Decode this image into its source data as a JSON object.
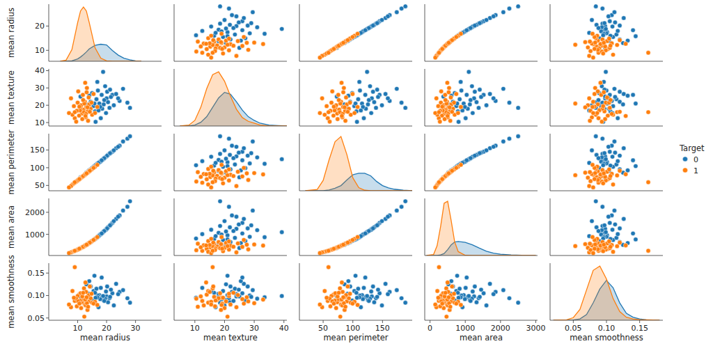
{
  "chart_data": {
    "type": "pairplot",
    "legend_title": "Target",
    "legend": "right",
    "variables": [
      {
        "name": "mean radius",
        "xlim": [
          0,
          39
        ],
        "xticks": [
          10,
          20,
          30
        ],
        "ylim": [
          5.5,
          29
        ],
        "yticks": [
          10,
          20
        ],
        "kde_x": [
          4,
          6,
          8,
          10,
          11,
          12,
          13,
          14,
          16,
          18,
          20,
          22,
          24,
          26,
          28,
          30,
          32
        ]
      },
      {
        "name": "mean texture",
        "xlim": [
          3,
          41
        ],
        "xticks": [
          10,
          20,
          30,
          40
        ],
        "ylim": [
          8,
          41
        ],
        "yticks": [
          10,
          20,
          30,
          40
        ],
        "kde_x": [
          5,
          8,
          10,
          12,
          14,
          16,
          18,
          20,
          22,
          24,
          26,
          28,
          30,
          32,
          35,
          38,
          41
        ]
      },
      {
        "name": "mean perimeter",
        "xlim": [
          10,
          200
        ],
        "xticks": [
          50,
          100,
          150
        ],
        "ylim": [
          35,
          196
        ],
        "yticks": [
          50,
          100,
          150
        ],
        "kde_x": [
          20,
          40,
          50,
          60,
          70,
          80,
          90,
          100,
          110,
          120,
          130,
          140,
          150,
          160,
          170,
          185,
          200
        ]
      },
      {
        "name": "mean area",
        "xlim": [
          -150,
          3050
        ],
        "xticks": [
          0,
          1000,
          2000,
          3000
        ],
        "ylim": [
          40,
          2630
        ],
        "yticks": [
          1000,
          2000
        ],
        "kde_x": [
          -100,
          100,
          200,
          300,
          400,
          500,
          600,
          700,
          800,
          1000,
          1200,
          1400,
          1600,
          1800,
          2000,
          2300,
          2600,
          3000
        ]
      },
      {
        "name": "mean smoothness",
        "xlim": [
          0.015,
          0.185
        ],
        "xticks": [
          0.05,
          {
            "value": 0.1,
            "label": "0.10"
          },
          0.15
        ],
        "ylim": [
          0.045,
          0.172
        ],
        "yticks": [
          0.05,
          {
            "value": 0.1,
            "label": "0.10"
          },
          0.15
        ],
        "kde_x": [
          0.02,
          0.04,
          0.05,
          0.06,
          0.07,
          0.08,
          0.09,
          0.1,
          0.11,
          0.12,
          0.13,
          0.14,
          0.15,
          0.16,
          0.18
        ]
      }
    ],
    "series": [
      {
        "name": "0",
        "color": "#1f77b4",
        "marker": "circle",
        "points": [
          [
            17.5,
            21.0,
            115.5,
            955,
            0.101
          ],
          [
            20.0,
            24.0,
            132.0,
            1250,
            0.098
          ],
          [
            15.5,
            19.5,
            102.5,
            745,
            0.11
          ],
          [
            18.5,
            18.0,
            122.0,
            1070,
            0.097
          ],
          [
            22.0,
            26.0,
            145.0,
            1520,
            0.105
          ],
          [
            16.5,
            23.5,
            109.0,
            840,
            0.115
          ],
          [
            19.0,
            20.5,
            125.5,
            1130,
            0.09
          ],
          [
            14.5,
            22.0,
            95.5,
            650,
            0.12
          ],
          [
            21.0,
            18.5,
            139.0,
            1380,
            0.094
          ],
          [
            24.5,
            22.5,
            162.0,
            1860,
            0.108
          ],
          [
            27.2,
            21.5,
            182.0,
            2250,
            0.094
          ],
          [
            28.1,
            18.5,
            188.5,
            2500,
            0.084
          ],
          [
            25.7,
            29.5,
            174.0,
            2080,
            0.112
          ],
          [
            23.3,
            26.5,
            155.0,
            1700,
            0.126
          ],
          [
            13.0,
            20.5,
            86.0,
            520,
            0.125
          ],
          [
            11.0,
            25.0,
            73.0,
            380,
            0.098
          ],
          [
            17.0,
            28.5,
            112.0,
            890,
            0.1
          ],
          [
            19.5,
            31.0,
            129.0,
            1190,
            0.093
          ],
          [
            16.0,
            16.5,
            106.0,
            790,
            0.106
          ],
          [
            18.0,
            12.5,
            118.5,
            1010,
            0.117
          ],
          [
            20.5,
            21.8,
            136.0,
            1320,
            0.085
          ],
          [
            15.0,
            27.0,
            99.0,
            700,
            0.089
          ],
          [
            21.5,
            24.8,
            142.5,
            1450,
            0.113
          ],
          [
            17.8,
            19.0,
            117.0,
            990,
            0.092
          ],
          [
            14.0,
            25.5,
            92.5,
            605,
            0.132
          ],
          [
            19.8,
            15.5,
            131.0,
            1210,
            0.109
          ],
          [
            16.8,
            33.5,
            111.0,
            870,
            0.096
          ],
          [
            18.8,
            39.3,
            124.0,
            1100,
            0.099
          ],
          [
            22.5,
            20.0,
            149.0,
            1600,
            0.078
          ],
          [
            20.2,
            27.8,
            134.0,
            1270,
            0.12
          ],
          [
            15.8,
            21.0,
            104.5,
            770,
            0.144
          ],
          [
            17.2,
            17.0,
            113.5,
            920,
            0.074
          ],
          [
            24.0,
            24.0,
            159.0,
            1800,
            0.103
          ],
          [
            13.8,
            18.0,
            91.0,
            590,
            0.104
          ],
          [
            19.2,
            23.0,
            127.0,
            1150,
            0.088
          ],
          [
            16.2,
            10.4,
            107.0,
            810,
            0.095
          ],
          [
            21.2,
            29.0,
            141.0,
            1410,
            0.097
          ],
          [
            18.3,
            26.0,
            121.0,
            1040,
            0.14
          ]
        ],
        "kde": [
          [
            0,
            0,
            0.001,
            0.006,
            0.011,
            0.017,
            0.024,
            0.032,
            0.041,
            0.044,
            0.042,
            0.028,
            0.016,
            0.008,
            0.004,
            0.001,
            0
          ],
          [
            0,
            0,
            0.001,
            0.004,
            0.01,
            0.02,
            0.03,
            0.036,
            0.034,
            0.026,
            0.017,
            0.01,
            0.006,
            0.003,
            0.001,
            0.0005,
            0
          ],
          [
            0,
            0,
            0,
            0.0003,
            0.001,
            0.002,
            0.0042,
            0.0062,
            0.0068,
            0.0068,
            0.0058,
            0.0036,
            0.002,
            0.0011,
            0.0006,
            0.0002,
            0
          ],
          [
            0,
            0,
            0,
            3e-05,
            0.0001,
            0.0003,
            0.00055,
            0.0007,
            0.00072,
            0.00068,
            0.00055,
            0.00038,
            0.00022,
            0.00012,
            7e-05,
            3e-05,
            1e-05,
            0
          ],
          [
            0,
            0,
            0.05,
            0.3,
            1.3,
            4,
            7.2,
            9.2,
            7.5,
            4,
            1.6,
            0.7,
            0.3,
            0.1,
            0
          ]
        ]
      },
      {
        "name": "1",
        "color": "#ff7f0e",
        "marker": "circle",
        "points": [
          [
            12.0,
            17.5,
            77.0,
            446,
            0.09
          ],
          [
            11.5,
            15.2,
            73.6,
            408,
            0.085
          ],
          [
            13.0,
            19.0,
            83.6,
            524,
            0.095
          ],
          [
            10.5,
            14.0,
            67.4,
            340,
            0.102
          ],
          [
            9.0,
            12.5,
            57.8,
            250,
            0.088
          ],
          [
            12.5,
            22.0,
            80.2,
            482,
            0.08
          ],
          [
            13.5,
            16.5,
            86.8,
            566,
            0.097
          ],
          [
            14.0,
            20.5,
            90.0,
            608,
            0.087
          ],
          [
            11.0,
            18.5,
            70.6,
            372,
            0.105
          ],
          [
            8.2,
            14.5,
            52.6,
            208,
            0.11
          ],
          [
            7.7,
            24.0,
            48.3,
            181,
            0.074
          ],
          [
            12.8,
            13.0,
            82.3,
            504,
            0.078
          ],
          [
            15.0,
            14.5,
            96.5,
            698,
            0.084
          ],
          [
            11.8,
            26.0,
            75.5,
            430,
            0.092
          ],
          [
            10.0,
            21.5,
            64.0,
            308,
            0.099
          ],
          [
            13.2,
            30.0,
            84.9,
            541,
            0.083
          ],
          [
            9.5,
            10.5,
            61.0,
            280,
            0.093
          ],
          [
            12.2,
            16.0,
            78.3,
            462,
            0.116
          ],
          [
            14.5,
            18.0,
            93.3,
            652,
            0.094
          ],
          [
            11.2,
            20.0,
            71.9,
            388,
            0.072
          ],
          [
            13.8,
            24.5,
            88.6,
            590,
            0.101
          ],
          [
            10.8,
            17.0,
            69.3,
            360,
            0.089
          ],
          [
            16.0,
            15.5,
            102.8,
            795,
            0.086
          ],
          [
            12.6,
            33.0,
            81.0,
            490,
            0.091
          ],
          [
            9.7,
            16.8,
            62.2,
            290,
            0.076
          ],
          [
            14.8,
            21.5,
            95.2,
            680,
            0.104
          ],
          [
            11.6,
            12.0,
            74.3,
            414,
            0.098
          ],
          [
            13.4,
            18.8,
            86.1,
            556,
            0.068
          ],
          [
            8.7,
            19.5,
            55.9,
            234,
            0.095
          ],
          [
            12.9,
            15.0,
            82.8,
            515,
            0.108
          ],
          [
            15.5,
            26.5,
            99.6,
            745,
            0.082
          ],
          [
            10.2,
            28.0,
            65.4,
            318,
            0.087
          ],
          [
            12.3,
            21.0,
            78.9,
            468,
            0.053
          ],
          [
            7.0,
            15.5,
            44.5,
            150,
            0.08
          ],
          [
            9.0,
            16.0,
            59.0,
            255,
            0.163
          ],
          [
            13.6,
            11.0,
            87.5,
            575,
            0.075
          ],
          [
            11.9,
            23.0,
            76.4,
            438,
            0.106
          ],
          [
            14.2,
            16.2,
            91.4,
            625,
            0.12
          ],
          [
            10.6,
            19.2,
            68.0,
            348,
            0.082
          ],
          [
            16.8,
            19.0,
            108.0,
            875,
            0.079
          ],
          [
            12.7,
            13.8,
            81.5,
            498,
            0.129
          ],
          [
            13.1,
            27.5,
            84.0,
            530,
            0.096
          ]
        ],
        "kde": [
          [
            0,
            0.003,
            0.03,
            0.1,
            0.13,
            0.14,
            0.13,
            0.1,
            0.035,
            0.008,
            0.001,
            0,
            0,
            0,
            0,
            0,
            0
          ],
          [
            0,
            0.001,
            0.006,
            0.02,
            0.04,
            0.055,
            0.058,
            0.048,
            0.032,
            0.018,
            0.009,
            0.005,
            0.003,
            0.001,
            0,
            0,
            0
          ],
          [
            0,
            0.0005,
            0.004,
            0.012,
            0.019,
            0.021,
            0.014,
            0.005,
            0.0012,
            0.0002,
            0,
            0,
            0,
            0,
            0,
            0,
            0
          ],
          [
            0,
            5e-05,
            0.0005,
            0.0015,
            0.0027,
            0.0028,
            0.0018,
            0.0007,
            0.0002,
            1e-05,
            0,
            0,
            0,
            0,
            0,
            0,
            0,
            0
          ],
          [
            0,
            0.1,
            0.6,
            2.5,
            7,
            11.5,
            12.5,
            9.5,
            5,
            2,
            0.7,
            0.3,
            0.15,
            0.08,
            0
          ]
        ]
      }
    ]
  }
}
